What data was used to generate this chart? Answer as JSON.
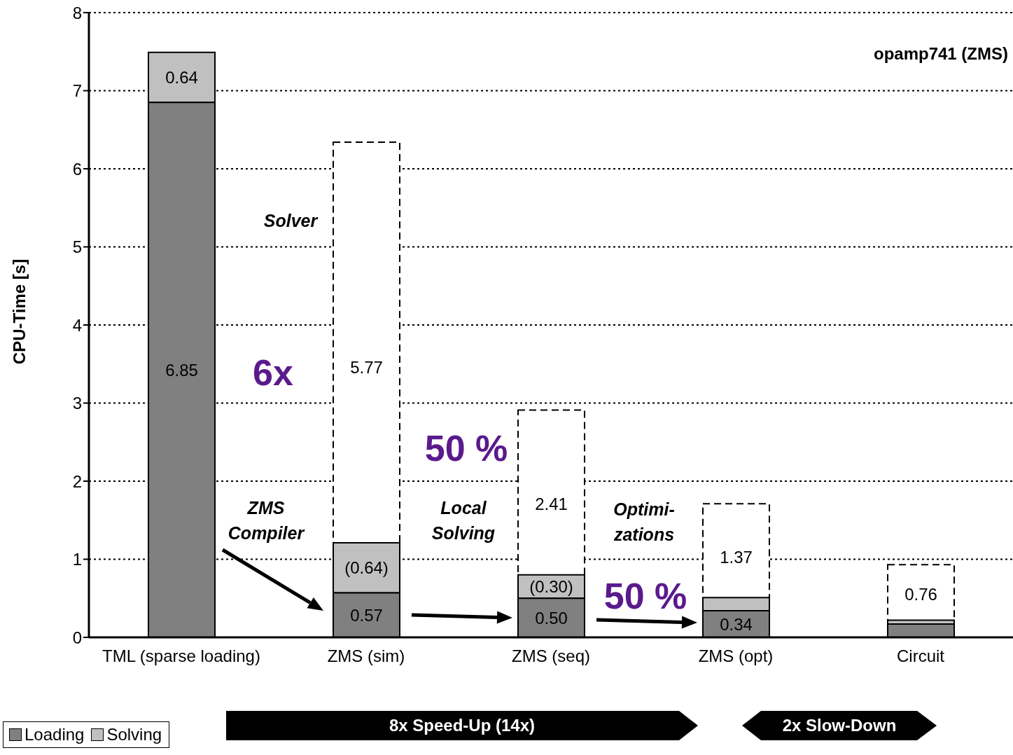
{
  "chart_data": {
    "type": "bar",
    "ylabel": "CPU-Time [s]",
    "categories": [
      "TML (sparse loading)",
      "ZMS (sim)",
      "ZMS (seq)",
      "ZMS (opt)",
      "Circuit"
    ],
    "series": [
      {
        "name": "Loading",
        "color": "#808080",
        "base": [
          0,
          0,
          0,
          0,
          0
        ],
        "values": [
          6.85,
          0.57,
          0.5,
          0.34,
          0.17
        ],
        "value_labels": [
          "6.85",
          "0.57",
          "0.50",
          "0.34",
          null
        ]
      },
      {
        "name": "Solving",
        "color": "#c0c0c0",
        "base": [
          6.85,
          0.57,
          0.5,
          0.34,
          0.17
        ],
        "values": [
          0.64,
          0.64,
          0.3,
          0.17,
          0.05
        ],
        "value_labels": [
          "0.64",
          "(0.64)",
          "(0.30)",
          null,
          null
        ]
      },
      {
        "color": "#ffffff",
        "line_style": "dashed",
        "base": [
          null,
          0.57,
          0.5,
          0.34,
          0.17
        ],
        "values": [
          null,
          5.77,
          2.41,
          1.37,
          0.76
        ],
        "value_labels": [
          null,
          "5.77",
          "2.41",
          "1.37",
          "0.76"
        ]
      }
    ],
    "ylim": [
      0,
      8
    ],
    "yticks": [
      0,
      1,
      2,
      3,
      4,
      5,
      6,
      7,
      8
    ],
    "grid": "y",
    "legend": "bottom left",
    "annotations": [
      "opamp741 (ZMS)",
      "Solver",
      "6x",
      "ZMS Compiler",
      "50 %",
      "Local Solving",
      "50 %",
      "Optimi-zations",
      "8x Speed-Up (14x)",
      "2x Slow-Down"
    ]
  }
}
